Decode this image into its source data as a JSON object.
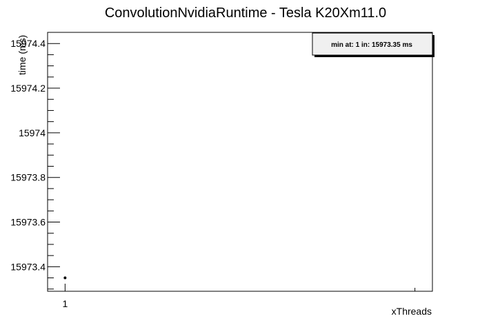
{
  "chart_data": {
    "type": "line",
    "title": "ConvolutionNvidiaRuntime - Tesla K20Xm11.0",
    "xlabel": "xThreads",
    "ylabel": "time (ms)",
    "xlim": [
      0.85,
      4.15
    ],
    "ylim": [
      15973.29,
      15974.45
    ],
    "x_ticks": [
      1
    ],
    "x_tick_labels": [
      "1"
    ],
    "y_ticks": [
      15973.4,
      15973.6,
      15973.8,
      15974,
      15974.2,
      15974.4
    ],
    "y_tick_labels": [
      "15973.4",
      "15973.6",
      "15973.8",
      "15974",
      "15974.2",
      "15974.4"
    ],
    "series": [
      {
        "x": [
          1
        ],
        "y": [
          15973.35
        ]
      }
    ],
    "legend_text": "min at: 1 in: 15973.35 ms",
    "legend_position": "top-right",
    "grid": false
  }
}
